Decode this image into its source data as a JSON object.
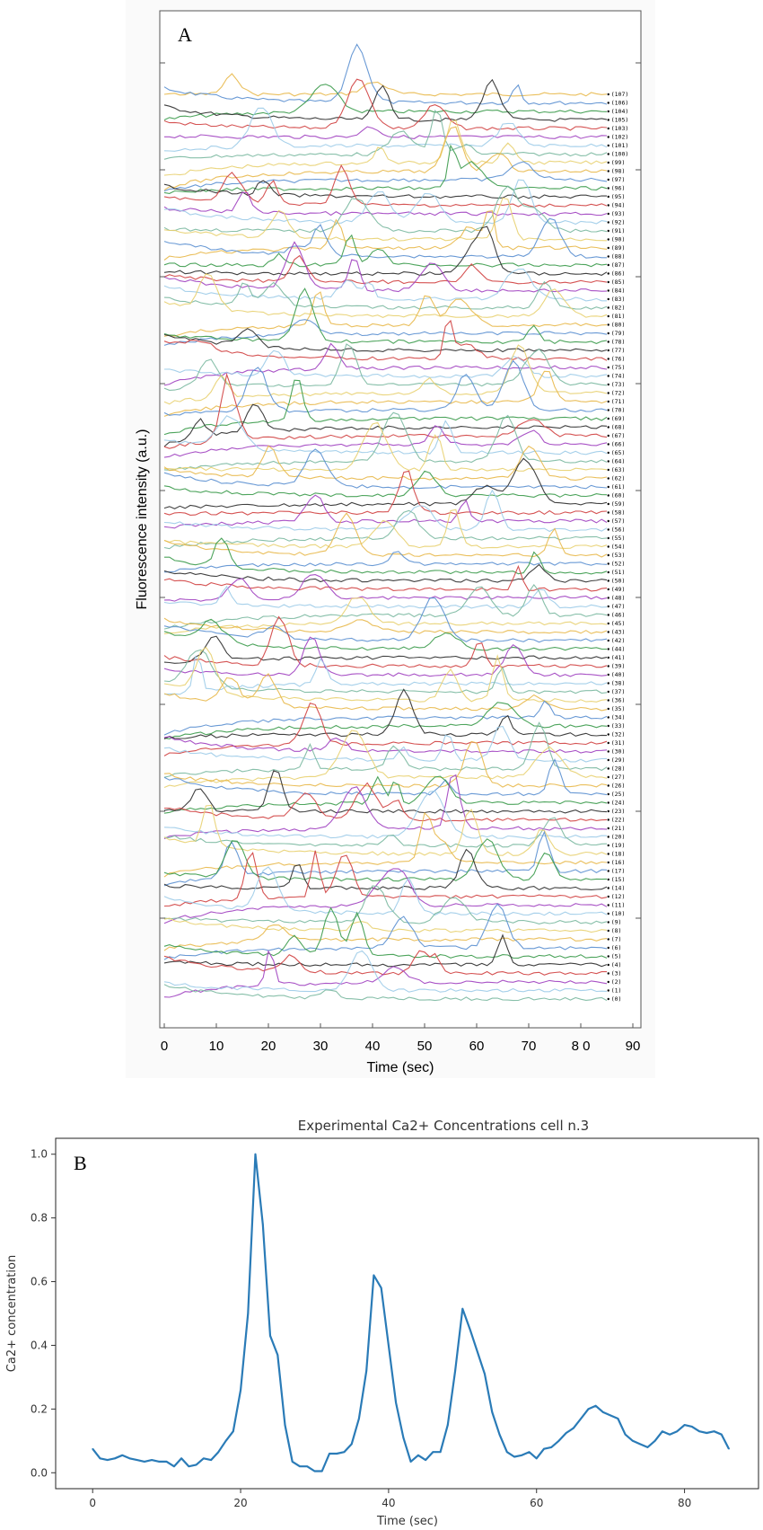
{
  "chart_data": [
    {
      "type": "line",
      "panel_label": "A",
      "xlabel": "Time (sec)",
      "ylabel": "Fluorescence intensity  (a.u.)",
      "xlim": [
        0,
        90
      ],
      "x_ticks": [
        "0",
        "10",
        "20",
        "30",
        "40",
        "50",
        "60",
        "70",
        "8 0",
        "90"
      ],
      "trace_labels": [
        "(107)",
        "(106)",
        "(104)",
        "(105)",
        "(103)",
        "(102)",
        "(101)",
        "(100)",
        "(99)",
        "(98)",
        "(97)",
        "(96)",
        "(95)",
        "(94)",
        "(93)",
        "(92)",
        "(91)",
        "(90)",
        "(89)",
        "(88)",
        "(87)",
        "(86)",
        "(85)",
        "(84)",
        "(83)",
        "(82)",
        "(81)",
        "(80)",
        "(79)",
        "(78)",
        "(77)",
        "(76)",
        "(75)",
        "(74)",
        "(73)",
        "(72)",
        "(71)",
        "(70)",
        "(69)",
        "(68)",
        "(67)",
        "(66)",
        "(65)",
        "(64)",
        "(63)",
        "(62)",
        "(61)",
        "(60)",
        "(59)",
        "(58)",
        "(57)",
        "(56)",
        "(55)",
        "(54)",
        "(53)",
        "(52)",
        "(51)",
        "(50)",
        "(49)",
        "(48)",
        "(47)",
        "(46)",
        "(45)",
        "(43)",
        "(42)",
        "(44)",
        "(41)",
        "(39)",
        "(40)",
        "(38)",
        "(37)",
        "(36)",
        "(35)",
        "(34)",
        "(33)",
        "(32)",
        "(31)",
        "(30)",
        "(29)",
        "(28)",
        "(27)",
        "(26)",
        "(25)",
        "(24)",
        "(23)",
        "(22)",
        "(21)",
        "(20)",
        "(19)",
        "(18)",
        "(16)",
        "(17)",
        "(15)",
        "(14)",
        "(12)",
        "(11)",
        "(10)",
        "(9)",
        "(8)",
        "(7)",
        "(6)",
        "(5)",
        "(4)",
        "(3)",
        "(2)",
        "(1)",
        "(0)"
      ],
      "series_colors": [
        "#e8b84a",
        "#5a8fd0",
        "#3a9a4a",
        "#2b2b2b",
        "#d04040",
        "#a040c0",
        "#9ccbe8",
        "#7ab8a0",
        "#e8d070"
      ],
      "legend": "none",
      "grid": false
    },
    {
      "type": "line",
      "panel_label": "B",
      "title": "Experimental Ca2+ Concentrations cell n.3",
      "xlabel": "Time (sec)",
      "ylabel": "Ca2+ concentration",
      "xlim": [
        -5,
        90
      ],
      "ylim": [
        -0.05,
        1.05
      ],
      "x_ticks": [
        "0",
        "20",
        "40",
        "60",
        "80"
      ],
      "y_ticks": [
        "0.0",
        "0.2",
        "0.4",
        "0.6",
        "0.8",
        "1.0"
      ],
      "color": "#2a7bb7",
      "x": [
        0,
        1,
        2,
        3,
        4,
        5,
        6,
        7,
        8,
        9,
        10,
        11,
        12,
        13,
        14,
        15,
        16,
        17,
        18,
        19,
        20,
        21,
        22,
        23,
        24,
        25,
        26,
        27,
        28,
        29,
        30,
        31,
        32,
        33,
        34,
        35,
        36,
        37,
        38,
        39,
        40,
        41,
        42,
        43,
        44,
        45,
        46,
        47,
        48,
        49,
        50,
        51,
        52,
        53,
        54,
        55,
        56,
        57,
        58,
        59,
        60,
        61,
        62,
        63,
        64,
        65,
        66,
        67,
        68,
        69,
        70,
        71,
        72,
        73,
        74,
        75,
        76,
        77,
        78,
        79,
        80,
        81,
        82,
        83,
        84,
        85,
        86
      ],
      "y": [
        0.075,
        0.045,
        0.04,
        0.045,
        0.055,
        0.045,
        0.04,
        0.035,
        0.04,
        0.035,
        0.035,
        0.02,
        0.045,
        0.02,
        0.025,
        0.045,
        0.04,
        0.065,
        0.1,
        0.13,
        0.26,
        0.5,
        1.0,
        0.78,
        0.43,
        0.37,
        0.15,
        0.035,
        0.02,
        0.02,
        0.005,
        0.005,
        0.06,
        0.06,
        0.065,
        0.09,
        0.17,
        0.32,
        0.62,
        0.58,
        0.4,
        0.22,
        0.11,
        0.035,
        0.055,
        0.04,
        0.065,
        0.065,
        0.15,
        0.32,
        0.515,
        0.45,
        0.38,
        0.31,
        0.19,
        0.12,
        0.065,
        0.05,
        0.055,
        0.065,
        0.045,
        0.075,
        0.08,
        0.1,
        0.125,
        0.14,
        0.17,
        0.2,
        0.21,
        0.19,
        0.18,
        0.17,
        0.12,
        0.1,
        0.09,
        0.08,
        0.1,
        0.13,
        0.12,
        0.13,
        0.15,
        0.145,
        0.13,
        0.125,
        0.13,
        0.12,
        0.075
      ],
      "legend": "none",
      "grid": false
    }
  ]
}
